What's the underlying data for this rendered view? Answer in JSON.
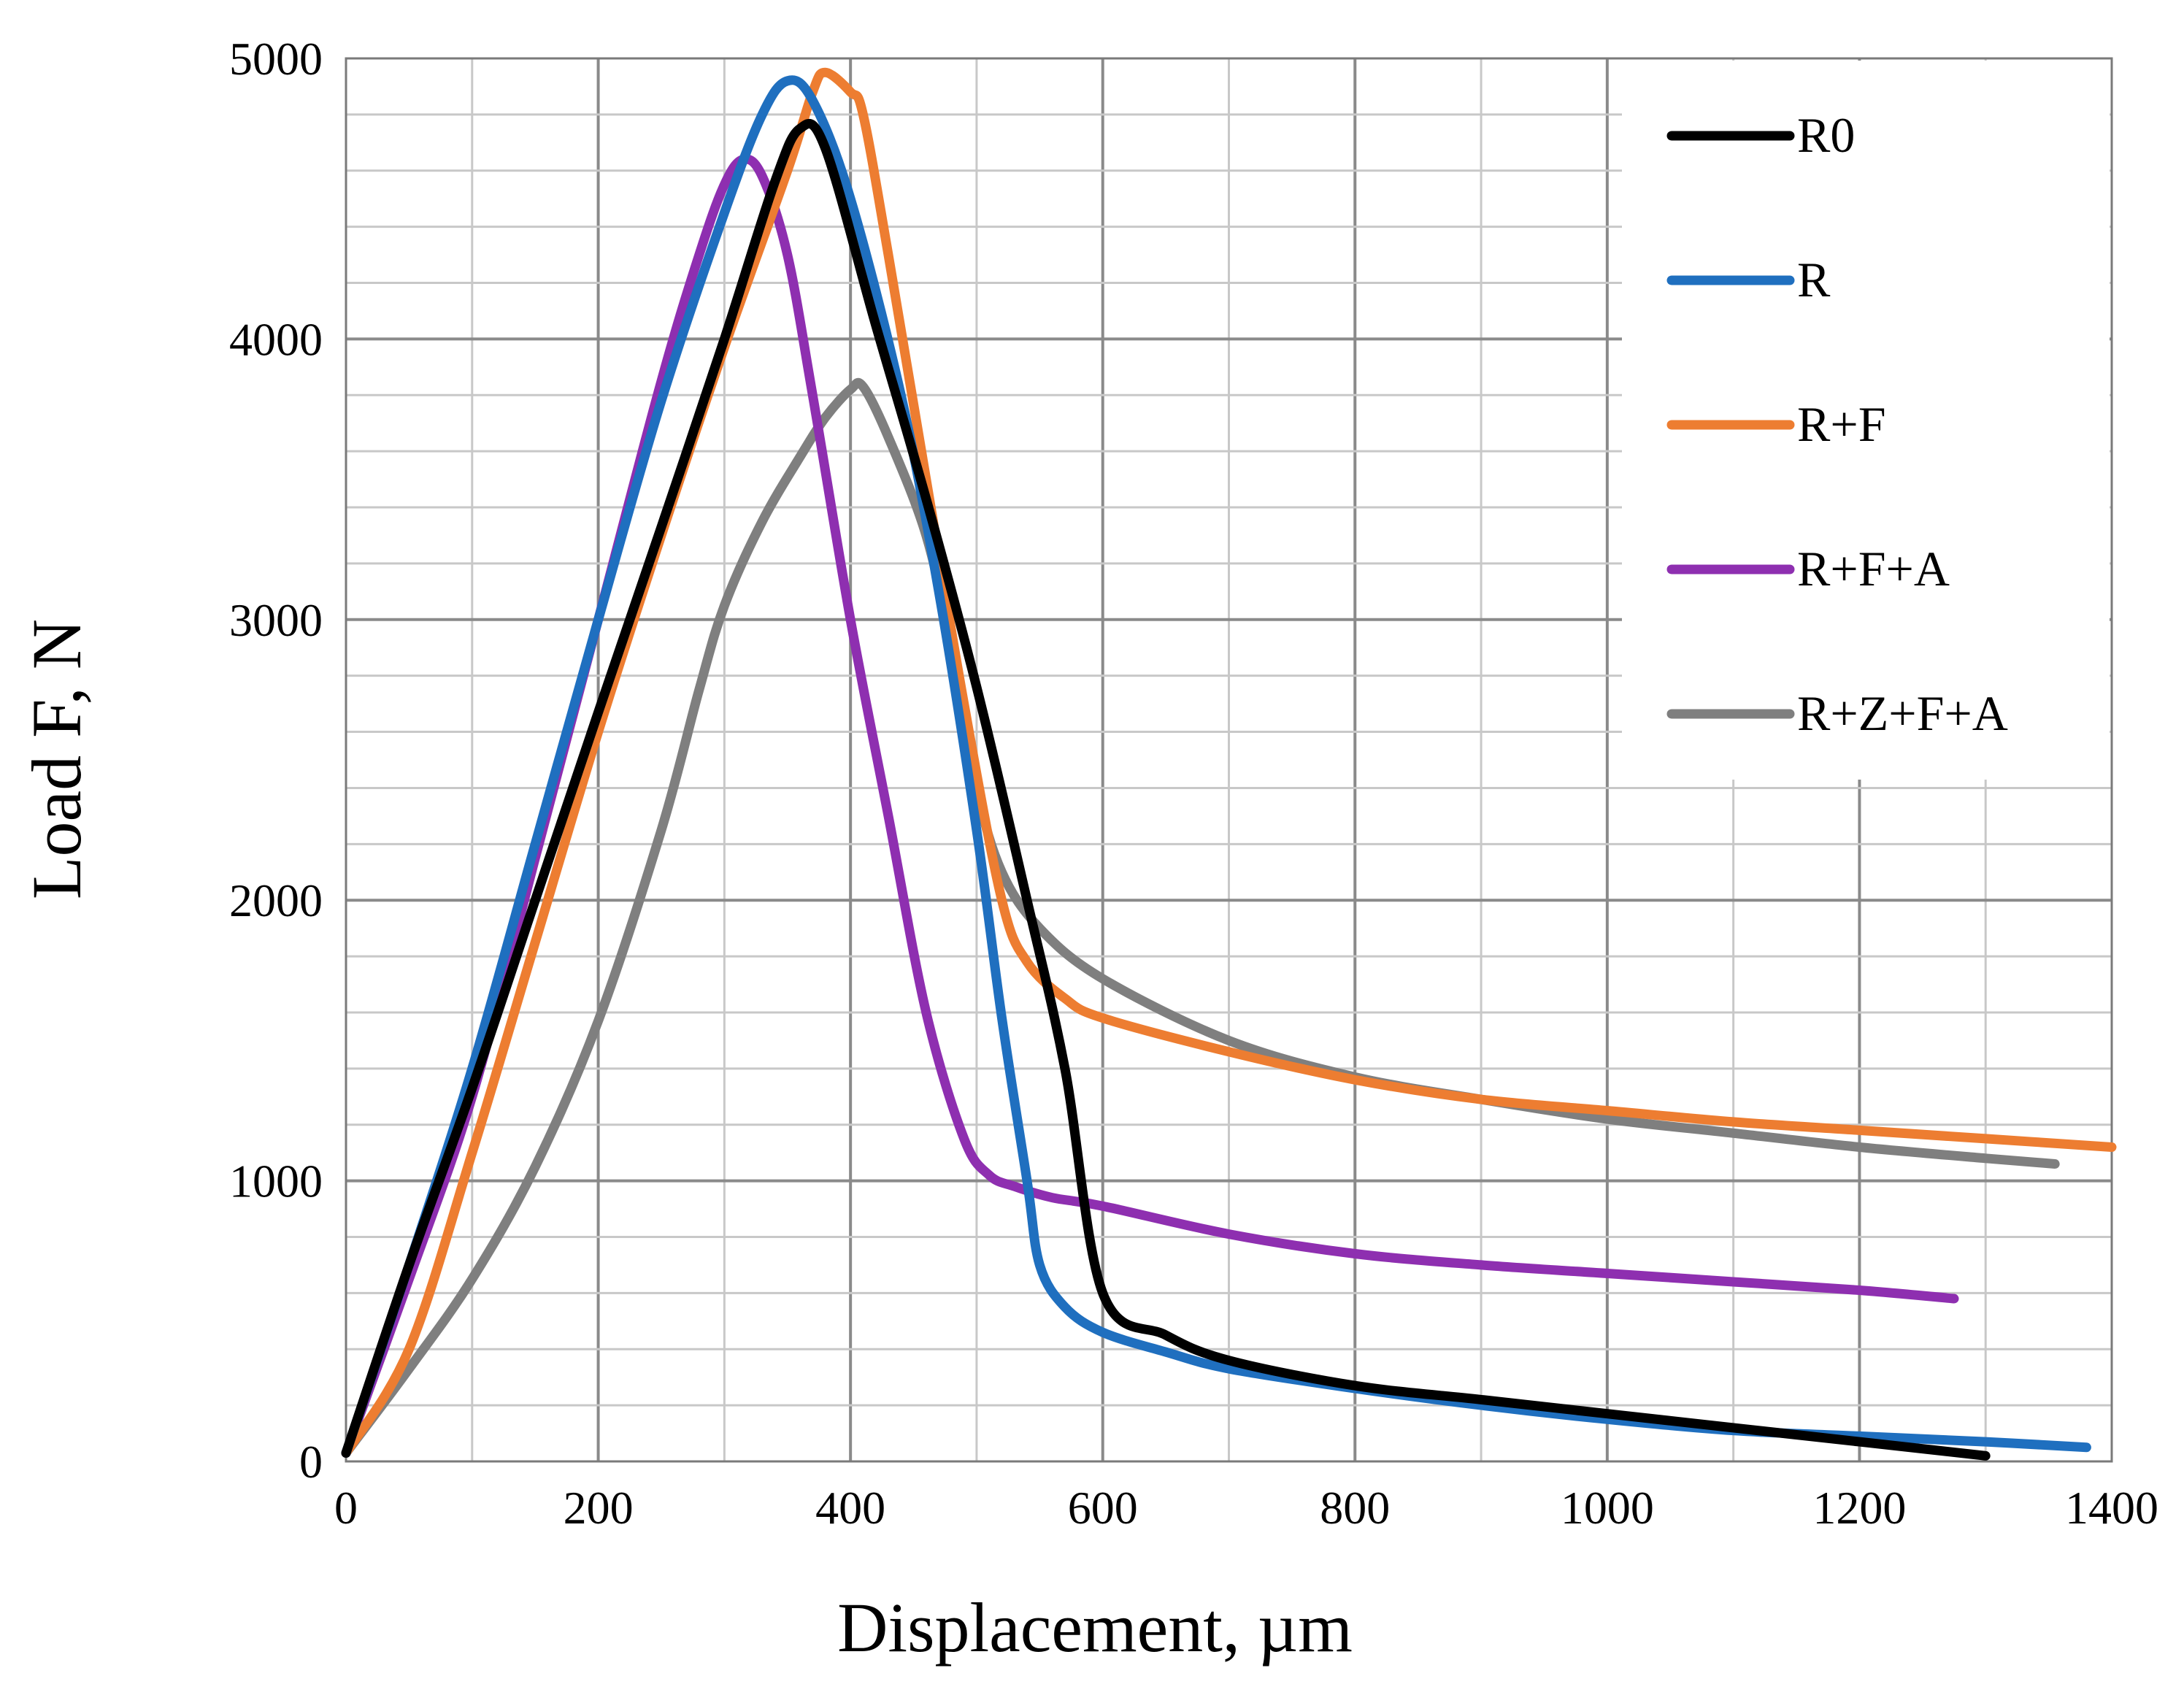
{
  "chart_data": {
    "type": "line",
    "title": "",
    "xlabel": "Displacement, µm",
    "ylabel": "Load F, N",
    "xlim": [
      0,
      1400
    ],
    "ylim": [
      0,
      5000
    ],
    "x_ticks": [
      "0",
      "200",
      "400",
      "600",
      "800",
      "1000",
      "1200",
      "1400"
    ],
    "y_ticks": [
      "0",
      "1000",
      "2000",
      "3000",
      "4000",
      "5000"
    ],
    "grid": true,
    "legend_position": "top-right",
    "series": [
      {
        "name": "R0",
        "color": "#000000",
        "x": [
          0,
          50,
          100,
          150,
          200,
          250,
          300,
          340,
          360,
          380,
          420,
          460,
          500,
          540,
          570,
          600,
          650,
          700,
          800,
          900,
          1000,
          1100,
          1200,
          1300
        ],
        "y": [
          30,
          700,
          1330,
          2000,
          2670,
          3330,
          4000,
          4560,
          4750,
          4680,
          4050,
          3430,
          2760,
          2000,
          1400,
          600,
          450,
          360,
          270,
          220,
          170,
          120,
          70,
          20
        ]
      },
      {
        "name": "R",
        "color": "#1F6FBF",
        "x": [
          0,
          50,
          100,
          150,
          200,
          250,
          300,
          330,
          350,
          370,
          400,
          440,
          470,
          500,
          520,
          540,
          550,
          570,
          600,
          650,
          700,
          800,
          900,
          1000,
          1100,
          1200,
          1300,
          1380
        ],
        "y": [
          30,
          700,
          1400,
          2200,
          3000,
          3780,
          4450,
          4800,
          4920,
          4850,
          4500,
          3800,
          3100,
          2250,
          1580,
          1000,
          700,
          550,
          460,
          390,
          330,
          260,
          200,
          150,
          110,
          90,
          70,
          50
        ]
      },
      {
        "name": "R+F",
        "color": "#ED7D31",
        "x": [
          0,
          50,
          100,
          150,
          200,
          250,
          300,
          350,
          370,
          380,
          400,
          410,
          430,
          460,
          490,
          520,
          540,
          570,
          600,
          700,
          800,
          900,
          1000,
          1100,
          1200,
          1300,
          1400
        ],
        "y": [
          30,
          400,
          1100,
          1850,
          2600,
          3300,
          3970,
          4600,
          4880,
          4950,
          4880,
          4800,
          4300,
          3500,
          2700,
          2000,
          1780,
          1650,
          1580,
          1460,
          1360,
          1290,
          1250,
          1210,
          1180,
          1150,
          1120
        ]
      },
      {
        "name": "R+F+A",
        "color": "#8E2FB0",
        "x": [
          0,
          50,
          100,
          150,
          200,
          250,
          280,
          300,
          315,
          330,
          350,
          370,
          400,
          430,
          460,
          490,
          510,
          530,
          560,
          600,
          700,
          800,
          900,
          1000,
          1100,
          1200,
          1275
        ],
        "y": [
          30,
          650,
          1300,
          2150,
          3000,
          3850,
          4300,
          4550,
          4640,
          4580,
          4300,
          3800,
          3000,
          2300,
          1600,
          1150,
          1020,
          980,
          940,
          910,
          810,
          740,
          700,
          670,
          640,
          610,
          580
        ]
      },
      {
        "name": "R+Z+F+A",
        "color": "#7F7F7F",
        "x": [
          0,
          50,
          100,
          150,
          200,
          250,
          280,
          300,
          330,
          360,
          380,
          400,
          410,
          430,
          460,
          480,
          500,
          520,
          550,
          600,
          700,
          800,
          900,
          1000,
          1100,
          1200,
          1300,
          1355
        ],
        "y": [
          30,
          330,
          650,
          1050,
          1570,
          2250,
          2750,
          3050,
          3350,
          3580,
          3720,
          3820,
          3830,
          3650,
          3300,
          2900,
          2400,
          2100,
          1900,
          1720,
          1500,
          1370,
          1290,
          1220,
          1170,
          1120,
          1080,
          1060
        ]
      }
    ]
  }
}
